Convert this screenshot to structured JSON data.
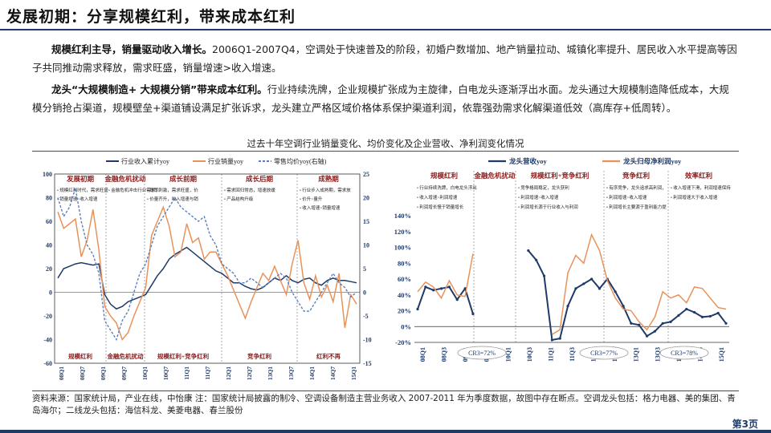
{
  "header": {
    "title": "发展初期：分享规模红利，带来成本红利"
  },
  "body": {
    "p1_bold": "规模红利主导，销量驱动收入增长。",
    "p1_text": "2006Q1-2007Q4，空调处于快速普及的阶段，初婚户数增加、地产销量拉动、城镇化率提升、居民收入水平提高等因子共同推动需求释放，需求旺盛，销量增速>收入增速。",
    "p2_bold": "龙头“大规模制造+ 大规模分销”带来成本红利。",
    "p2_text": "行业持续洗牌，企业规模扩张成为主旋律，白电龙头逐渐浮出水面。龙头通过大规模制造降低成本，大规模分销抢占渠道，规模壁垒+渠道铺设满足扩张诉求，龙头建立严格区域价格体系保护渠道利润，依靠强劲需求化解渠道低效（高库存+低周转）。"
  },
  "figure": {
    "caption": "过去十年空调行业销量变化、均价变化及企业营收、净利润变化情况"
  },
  "chart_data": [
    {
      "type": "line",
      "legend": [
        "行业收入累计yoy",
        "行业销量yoy",
        "零售均价yoy(右轴)"
      ],
      "legend_placement": "top",
      "phases": [
        "发展初期",
        "金融危机扰动",
        "成长前期",
        "成长后期",
        "成熟期"
      ],
      "phase_notes": [
        "• 规模红利时代，需求旺盛，量升>价升\n• 销量增速>收入增速",
        "• 金融危机冲击行业需求，销量下滑",
        "• 政策刺激，需求旺盛，价格高企\n• 价量齐升，收入增速与销量增速同步",
        "• 需求回归常态，增速放缓\n• 产品结构升级",
        "• 行业步入成熟期，需求放缓\n• 价升>量升\n• 收入增速>销量增速"
      ],
      "bottom_labels": [
        "规模红利",
        "金融危机扰动",
        "规模红利+竞争红利",
        "竞争红利",
        "红利不再"
      ],
      "x_ticks": [
        "08Q1",
        "08Q7",
        "09Q1",
        "09Q7",
        "10Q1",
        "10Q7",
        "11Q1",
        "11Q7",
        "12Q1",
        "12Q7",
        "13Q1",
        "13Q7",
        "14Q1",
        "14Q7",
        "15Q1"
      ],
      "ylim_left": [
        -60,
        100
      ],
      "ylim_right": [
        -15,
        25
      ],
      "y_ticks_left": [
        100,
        80,
        60,
        40,
        20,
        0,
        -20,
        -40,
        -60
      ],
      "y_ticks_right": [
        25,
        20,
        15,
        10,
        5,
        0,
        -5,
        -10,
        -15
      ],
      "series": [
        {
          "name": "行业收入累计yoy",
          "axis": "left",
          "color": "#1f3a67",
          "values": [
            12,
            20,
            22,
            24,
            25,
            24,
            23,
            24,
            -2,
            -10,
            -14,
            -12,
            -8,
            -6,
            -4,
            -2,
            6,
            14,
            20,
            28,
            32,
            35,
            38,
            34,
            30,
            26,
            22,
            18,
            16,
            12,
            8,
            8,
            5,
            3,
            2,
            4,
            8,
            12,
            10,
            14,
            10,
            8,
            11,
            12,
            8,
            6,
            10,
            12,
            10,
            10,
            9,
            8
          ]
        },
        {
          "name": "行业销量yoy",
          "axis": "left",
          "color": "#e8925a",
          "values": [
            68,
            54,
            58,
            62,
            30,
            44,
            70,
            36,
            -12,
            -20,
            -26,
            -40,
            -34,
            -20,
            -8,
            4,
            48,
            60,
            72,
            56,
            30,
            34,
            58,
            42,
            46,
            28,
            34,
            34,
            24,
            14,
            2,
            -10,
            -22,
            -8,
            4,
            16,
            10,
            22,
            10,
            -2,
            24,
            44,
            8,
            -6,
            14,
            -4,
            6,
            -8,
            16,
            -30,
            -2,
            -10
          ]
        },
        {
          "name": "零售均价yoy(右轴)",
          "axis": "right",
          "color": "#5b7fbe",
          "dashed": true,
          "values": [
            20,
            16,
            18,
            22,
            15,
            10,
            8,
            4,
            -6,
            -8,
            -10,
            -6,
            -4,
            0,
            4,
            6,
            10,
            14,
            16,
            18,
            20,
            18,
            17,
            16,
            15,
            16,
            12,
            10,
            6,
            5,
            4,
            2,
            2,
            3,
            2,
            1,
            2,
            3,
            4,
            3,
            0,
            -2,
            -4,
            -4,
            -2,
            0,
            2,
            4,
            2,
            1,
            -1,
            0
          ]
        }
      ]
    },
    {
      "type": "line",
      "legend": [
        "龙头营收yoy",
        "龙头归母净利润yoy"
      ],
      "legend_placement": "top",
      "phases": [
        "规模红利",
        "金融危机扰动",
        "规模红利+竞争红利",
        "竞争红利",
        "效率红利"
      ],
      "phase_notes": [
        "• 行业持续洗牌，白电龙头浮出水面，竞争宽松\n• 收入增速>利润增速\n• 利润增长慢于销量增长",
        "",
        "• 竞争格局稳定，龙头获利\n• 利润增速>收入增速\n• 利润增长源于行业收入与利润红利增长",
        "• 有序竞争，龙头追求高利润，全面开花\n• 利润增速>收入增速\n• 利润增长主要源于盈利能力提升",
        "• 收入增速下滑，利润增速保持平稳\n• 利润增速大于收入增速"
      ],
      "bottom_labels": [
        "CR3=72%",
        "CR3=77%",
        "CR3=78%"
      ],
      "x_ticks": [
        "08Q1",
        "08Q3",
        "09Q1",
        "09Q3",
        "10Q1",
        "10Q3",
        "11Q1",
        "11Q3",
        "12Q1",
        "12Q3",
        "13Q1",
        "13Q3",
        "14Q1",
        "14Q3",
        "15Q1"
      ],
      "ylim": [
        -20,
        140
      ],
      "y_ticks": [
        "140%",
        "120%",
        "100%",
        "80%",
        "60%",
        "40%",
        "20%",
        "0%",
        "-20%"
      ],
      "series": [
        {
          "name": "龙头营收yoy",
          "color": "#1f3a67",
          "values": [
            22,
            50,
            46,
            48,
            50,
            34,
            48,
            16,
            null,
            null,
            null,
            null,
            null,
            null,
            96,
            84,
            64,
            -17,
            -15,
            26,
            48,
            54,
            60,
            48,
            60,
            44,
            26,
            4,
            2,
            -12,
            -6,
            4,
            6,
            14,
            22,
            18,
            12,
            13,
            17,
            4
          ]
        },
        {
          "name": "龙头归母净利润yoy",
          "color": "#e8925a",
          "values": [
            44,
            56,
            50,
            36,
            58,
            40,
            38,
            92,
            null,
            null,
            null,
            null,
            null,
            null,
            null,
            null,
            null,
            -10,
            -4,
            68,
            90,
            80,
            116,
            96,
            58,
            36,
            22,
            20,
            6,
            -4,
            12,
            44,
            36,
            40,
            30,
            50,
            48,
            36,
            24,
            22
          ]
        }
      ]
    }
  ],
  "footer": {
    "source": "资料来源：国家统计局，产业在线，中怡康  注：国家统计局披露的制冷、空调设备制造主营业务收入 2007-2011 年为季度数据，故图中存在断点。空调龙头包括：格力电器、美的集团、青岛海尔；二线龙头包括：海信科龙、美菱电器、春兰股份",
    "page_number": "第3页"
  },
  "colors": {
    "navy": "#1f3a67",
    "orange": "#e8925a",
    "dash_blue": "#5b7fbe"
  }
}
